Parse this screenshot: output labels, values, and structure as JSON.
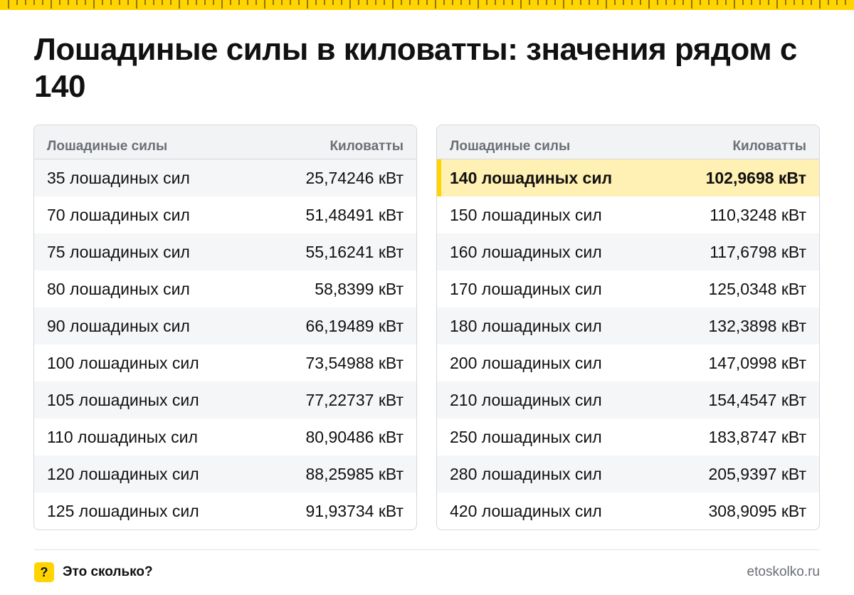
{
  "title": "Лошадиные силы в киловатты: значения рядом с 140",
  "colors": {
    "accent": "#ffd400",
    "highlight_row": "#fff0b3"
  },
  "left_table": {
    "headers": [
      "Лошадиные силы",
      "Киловатты"
    ],
    "rows": [
      [
        "35 лошадиных сил",
        "25,74246 кВт"
      ],
      [
        "70 лошадиных сил",
        "51,48491 кВт"
      ],
      [
        "75 лошадиных сил",
        "55,16241 кВт"
      ],
      [
        "80 лошадиных сил",
        "58,8399 кВт"
      ],
      [
        "90 лошадиных сил",
        "66,19489 кВт"
      ],
      [
        "100 лошадиных сил",
        "73,54988 кВт"
      ],
      [
        "105 лошадиных сил",
        "77,22737 кВт"
      ],
      [
        "110 лошадиных сил",
        "80,90486 кВт"
      ],
      [
        "120 лошадиных сил",
        "88,25985 кВт"
      ],
      [
        "125 лошадиных сил",
        "91,93734 кВт"
      ]
    ]
  },
  "right_table": {
    "headers": [
      "Лошадиные силы",
      "Киловатты"
    ],
    "rows": [
      [
        "140 лошадиных сил",
        "102,9698 кВт"
      ],
      [
        "150 лошадиных сил",
        "110,3248 кВт"
      ],
      [
        "160 лошадиных сил",
        "117,6798 кВт"
      ],
      [
        "170 лошадиных сил",
        "125,0348 кВт"
      ],
      [
        "180 лошадиных сил",
        "132,3898 кВт"
      ],
      [
        "200 лошадиных сил",
        "147,0998 кВт"
      ],
      [
        "210 лошадиных сил",
        "154,4547 кВт"
      ],
      [
        "250 лошадиных сил",
        "183,8747 кВт"
      ],
      [
        "280 лошадиных сил",
        "205,9397 кВт"
      ],
      [
        "420 лошадиных сил",
        "308,9095 кВт"
      ]
    ]
  },
  "footer": {
    "badge": "?",
    "brand": "Это сколько?",
    "url": "etoskolko.ru"
  }
}
